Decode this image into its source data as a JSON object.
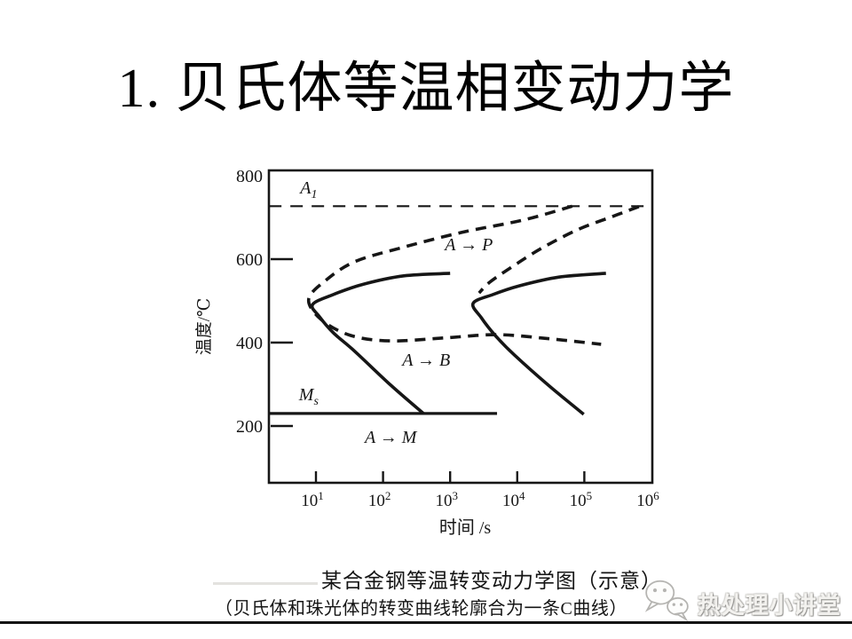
{
  "slide": {
    "title": "1. 贝氏体等温相变动力学",
    "watermark": {
      "label": "热处理小讲堂",
      "logo": "wechat-bubbles-icon"
    }
  },
  "figure": {
    "caption_line1": "某合金钢等温转变动力学图（示意）",
    "caption_line2": "（贝氏体和珠光体的转变曲线轮廓合为一条C曲线）"
  },
  "colors": {
    "ink": "#161616",
    "paper": "#ffffff",
    "watermark_gray": "#b5b4b1"
  },
  "chart_data": {
    "type": "line",
    "title": "某合金钢等温转变动力学图（示意）",
    "xlabel": "时间 /s",
    "ylabel": "温度/℃",
    "x_scale": "log",
    "xlim": [
      2,
      1000000
    ],
    "ylim": [
      60,
      810
    ],
    "grid": false,
    "x_axis": {
      "title": "时间 /s",
      "base": "10",
      "ticks": [
        {
          "exp": "1",
          "t": 10,
          "tick": true
        },
        {
          "exp": "2",
          "t": 100,
          "tick": true
        },
        {
          "exp": "3",
          "t": 1000,
          "tick": true
        },
        {
          "exp": "4",
          "t": 10000,
          "tick": true
        },
        {
          "exp": "5",
          "t": 100000,
          "tick": true
        },
        {
          "exp": "6",
          "t": 1000000,
          "tick": false
        }
      ]
    },
    "y_axis": {
      "title": "温度/℃",
      "ticks": [
        {
          "v": 800,
          "tick": false
        },
        {
          "v": 600,
          "tick": true
        },
        {
          "v": 400,
          "tick": true
        },
        {
          "v": 200,
          "tick": true
        }
      ]
    },
    "series": [
      {
        "name": "A1-temperature-line",
        "style": "dashed",
        "width": 2.2,
        "dash": "14 10",
        "points": [
          [
            2,
            727
          ],
          [
            1000000,
            727
          ]
        ]
      },
      {
        "name": "combined-C-curve-dashed-left",
        "style": "dashed",
        "width": 3.6,
        "dash": "12 8",
        "points": [
          [
            66000,
            727
          ],
          [
            12500,
            694
          ],
          [
            1480,
            664
          ],
          [
            175,
            626
          ],
          [
            38,
            594
          ],
          [
            14.5,
            551
          ],
          [
            7.8,
            504
          ],
          [
            12,
            455
          ],
          [
            33,
            417
          ],
          [
            130,
            404
          ],
          [
            800,
            411
          ],
          [
            5000,
            419
          ],
          [
            31000,
            409
          ],
          [
            178000,
            396
          ]
        ]
      },
      {
        "name": "pearlite-solid-curve",
        "style": "solid",
        "width": 3.6,
        "points": [
          [
            1000,
            566
          ],
          [
            204,
            560
          ],
          [
            51,
            540
          ],
          [
            18,
            515
          ],
          [
            8.9,
            491
          ],
          [
            11.3,
            462
          ],
          [
            18.3,
            423
          ],
          [
            38,
            379
          ],
          [
            130,
            298
          ],
          [
            400,
            230
          ]
        ]
      },
      {
        "name": "combined-C-curve-dashed-right",
        "style": "dashed",
        "width": 3.6,
        "dash": "12 8",
        "points": [
          [
            650000,
            726
          ],
          [
            260000,
            702
          ],
          [
            78000,
            670
          ],
          [
            23000,
            626
          ],
          [
            7900,
            579
          ],
          [
            3900,
            545
          ],
          [
            2700,
            519
          ]
        ]
      },
      {
        "name": "bainite-solid-curve",
        "style": "solid",
        "width": 3.6,
        "points": [
          [
            210000,
            566
          ],
          [
            42000,
            557
          ],
          [
            10700,
            536
          ],
          [
            4300,
            515
          ],
          [
            2200,
            494
          ],
          [
            2900,
            460
          ],
          [
            4700,
            417
          ],
          [
            9100,
            370
          ],
          [
            31000,
            294
          ],
          [
            98000,
            228
          ]
        ]
      },
      {
        "name": "Ms-line",
        "style": "solid",
        "width": 3.2,
        "points": [
          [
            2,
            230
          ],
          [
            5000,
            230
          ]
        ]
      }
    ],
    "annotations": [
      {
        "text": "A",
        "sub": "1",
        "t": 7.8,
        "T": 757
      },
      {
        "text": "M",
        "sub": "s",
        "t": 7.8,
        "T": 262
      },
      {
        "text": "A → P",
        "t": 1900,
        "T": 621
      },
      {
        "text": "A → B",
        "t": 440,
        "T": 345
      },
      {
        "text": "A → M",
        "t": 130,
        "T": 160
      }
    ]
  }
}
